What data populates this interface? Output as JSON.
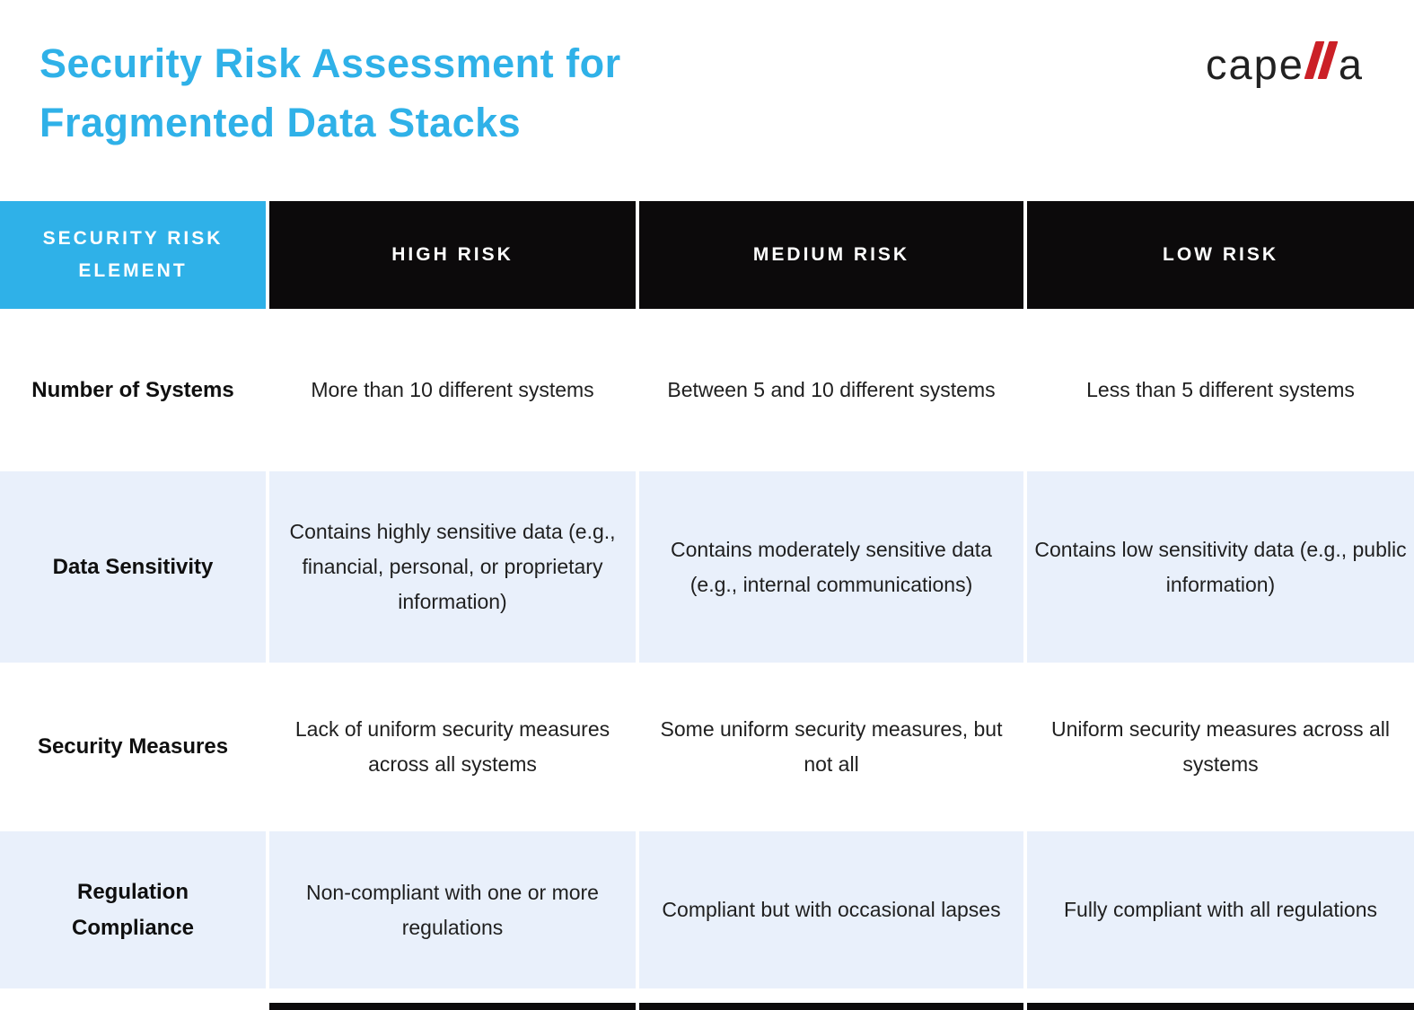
{
  "colors": {
    "accent": "#2FB1E8",
    "header-bg": "#0C0A0B",
    "row-alt": "#E9F0FB",
    "logo-red": "#CB2027"
  },
  "header": {
    "title_lines": [
      "Security Risk Assessment for",
      "Fragmented Data Stacks"
    ]
  },
  "logo": {
    "text_pre": "cape",
    "double_l_mark": "ll",
    "text_post": "a"
  },
  "table": {
    "headers": [
      "SECURITY RISK ELEMENT",
      "HIGH RISK",
      "MEDIUM RISK",
      "LOW RISK"
    ],
    "rows": [
      {
        "element": "Number of Systems",
        "high": "More than 10 different systems",
        "medium": "Between 5 and 10 different systems",
        "low": "Less than 5 different systems"
      },
      {
        "element": "Data Sensitivity",
        "high": "Contains highly sensitive data (e.g., financial, personal, or proprietary information)",
        "medium": "Contains moderately sensitive data (e.g., internal communications)",
        "low": "Contains low sensitivity data (e.g., public information)"
      },
      {
        "element": "Security Measures",
        "high": "Lack of uniform security measures across all systems",
        "medium": "Some uniform security measures, but not all",
        "low": "Uniform security measures across all systems"
      },
      {
        "element": "Regulation Compliance",
        "high": "Non-compliant with one or more regulations",
        "medium": "Compliant but with occasional lapses",
        "low": "Fully compliant with all regulations"
      }
    ]
  }
}
